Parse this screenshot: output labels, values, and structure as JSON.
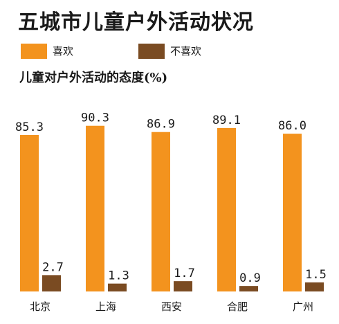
{
  "title": "五城市儿童户外活动状况",
  "legend": [
    {
      "label": "喜欢",
      "color": "#F3931E"
    },
    {
      "label": "不喜欢",
      "color": "#7A4B22"
    }
  ],
  "subtitle": "儿童对户外活动的态度(%)",
  "chart_data": {
    "type": "bar",
    "title": "五城市儿童户外活动状况",
    "subtitle": "儿童对户外活动的态度(%)",
    "categories": [
      "北京",
      "上海",
      "西安",
      "合肥",
      "广州"
    ],
    "series": [
      {
        "name": "喜欢",
        "color": "#F3931E",
        "values": [
          85.3,
          90.3,
          86.9,
          89.1,
          86.0
        ]
      },
      {
        "name": "不喜欢",
        "color": "#7A4B22",
        "values": [
          2.7,
          1.3,
          1.7,
          0.9,
          1.5
        ]
      }
    ],
    "value_labels": [
      [
        "85.3",
        "90.3",
        "86.9",
        "89.1",
        "86.0"
      ],
      [
        "2.7",
        "1.3",
        "1.7",
        "0.9",
        "1.5"
      ]
    ],
    "ylim": [
      0,
      100
    ],
    "grid": false,
    "legend_position": "top-left"
  }
}
